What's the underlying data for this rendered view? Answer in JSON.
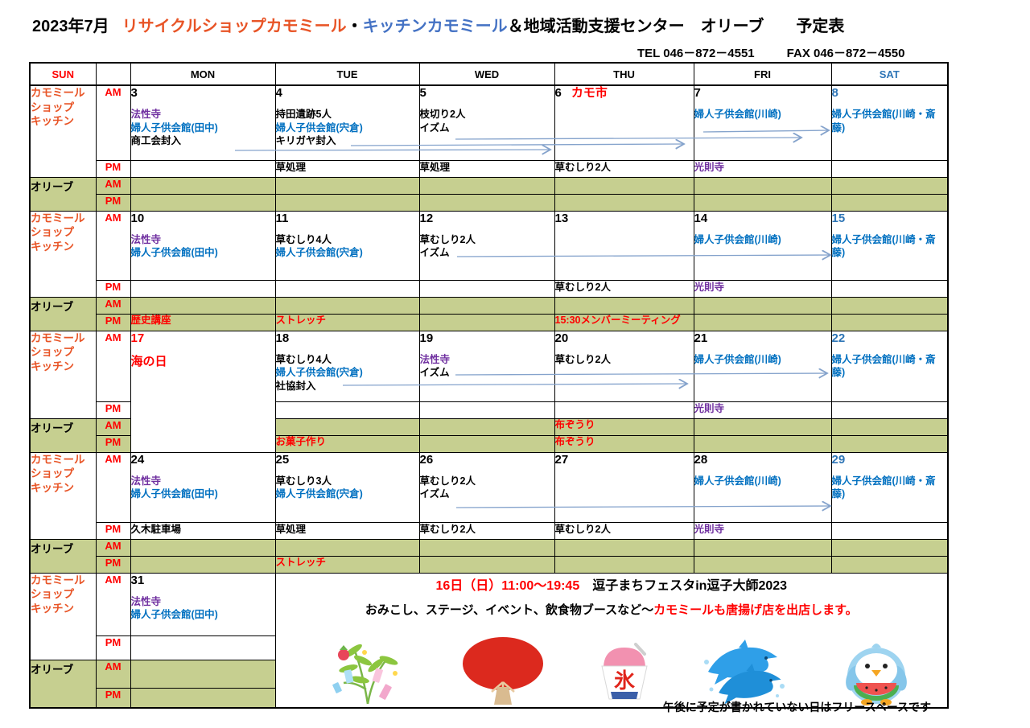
{
  "palette": {
    "red": "#ff0000",
    "orange": "#e85426",
    "event_blue": "#0070c0",
    "purple": "#7030a0",
    "sat_blue": "#2e75b6",
    "kitchen_blue": "#4472c4",
    "olive_green": "#c6cf90",
    "arrow_blue": "#85a3cc"
  },
  "header": {
    "month": "2023年7月",
    "title_shop": "リサイクルショップカモミール",
    "title_dot": "・",
    "title_kitchen": "キッチンカモミール",
    "title_rest": "＆地域活動支援センター　オリーブ　　予定表",
    "tel": "TEL 046－872－4551",
    "fax": "FAX 046－872－4550"
  },
  "table": {
    "day_headers": [
      {
        "label": "SUN"
      },
      {
        "label": ""
      },
      {
        "label": "MON"
      },
      {
        "label": "TUE"
      },
      {
        "label": "WED"
      },
      {
        "label": "THU"
      },
      {
        "label": "FRI"
      },
      {
        "label": "SAT"
      }
    ],
    "row_labels": {
      "chamomile": [
        "カモミール",
        "ショップ",
        "キッチン"
      ],
      "olive": "オリーブ",
      "am": "AM",
      "pm": "PM"
    }
  },
  "weeks": [
    {
      "mon": {
        "num": "3",
        "am": [
          [
            "法性寺",
            "purple"
          ],
          [
            "婦人子供会館(田中)",
            "blue"
          ],
          [
            "商工会封入",
            "black"
          ]
        ],
        "pm": []
      },
      "tue": {
        "num": "4",
        "am": [
          [
            "持田遺跡5人",
            "black"
          ],
          [
            "婦人子供会館(宍倉)",
            "blue"
          ],
          [
            "キリガヤ封入",
            "black"
          ]
        ],
        "pm": [
          [
            "草処理",
            "black"
          ]
        ]
      },
      "wed": {
        "num": "5",
        "am": [
          [
            "枝切り2人",
            "black"
          ],
          [
            "イズム",
            "black"
          ]
        ],
        "pm": [
          [
            "草処理",
            "black"
          ]
        ]
      },
      "thu": {
        "num": "6",
        "badge": "カモ市",
        "am": [],
        "pm": [
          [
            "草むしり2人",
            "black"
          ]
        ]
      },
      "fri": {
        "num": "7",
        "am": [
          [
            "婦人子供会館(川崎)",
            "blue"
          ]
        ],
        "pm": [
          [
            "光則寺",
            "purple"
          ]
        ]
      },
      "sat": {
        "num": "8",
        "num_color": "sat",
        "am": [
          [
            "婦人子供会館(川崎・斎藤)",
            "blue"
          ]
        ],
        "pm": []
      },
      "olive_am": {},
      "olive_pm": {},
      "diag_am": [
        "sat"
      ],
      "diag_pm": [
        "wed",
        "sat"
      ]
    },
    {
      "mon": {
        "num": "10",
        "am": [
          [
            "法性寺",
            "purple"
          ],
          [
            "婦人子供会館(田中)",
            "blue"
          ]
        ],
        "pm": []
      },
      "tue": {
        "num": "11",
        "am": [
          [
            "草むしり4人",
            "black"
          ],
          [
            "婦人子供会館(宍倉)",
            "blue"
          ]
        ],
        "pm": []
      },
      "wed": {
        "num": "12",
        "am": [
          [
            "草むしり2人",
            "black"
          ],
          [
            "イズム",
            "black"
          ]
        ],
        "pm": []
      },
      "thu": {
        "num": "13",
        "am": [],
        "pm": [
          [
            "草むしり2人",
            "black"
          ]
        ]
      },
      "fri": {
        "num": "14",
        "am": [
          [
            "婦人子供会館(川崎)",
            "blue"
          ]
        ],
        "pm": [
          [
            "光則寺",
            "purple"
          ]
        ]
      },
      "sat": {
        "num": "15",
        "num_color": "sat",
        "am": [
          [
            "婦人子供会館(川崎・斎藤)",
            "blue"
          ]
        ],
        "pm": []
      },
      "olive_am": {},
      "olive_pm": {
        "mon": [
          [
            "歴史講座",
            "red"
          ]
        ],
        "tue": [
          [
            "ストレッチ",
            "red"
          ]
        ],
        "thu": [
          [
            "15:30メンバーミーティング",
            "red"
          ]
        ]
      },
      "diag_am": [
        "sat"
      ],
      "diag_pm": [
        "wed",
        "sat"
      ]
    },
    {
      "mon": {
        "num": "17",
        "num_color": "red",
        "span_all": true,
        "am": [
          [
            "海の日",
            "red-big"
          ]
        ],
        "pm": []
      },
      "tue": {
        "num": "18",
        "am": [
          [
            "草むしり4人",
            "black"
          ],
          [
            "婦人子供会館(宍倉)",
            "blue"
          ],
          [
            "社協封入",
            "black"
          ]
        ],
        "pm": []
      },
      "wed": {
        "num": "19",
        "am": [
          [
            "法性寺",
            "purple"
          ],
          [
            "イズム",
            "black"
          ]
        ],
        "pm": []
      },
      "thu": {
        "num": "20",
        "am": [
          [
            "草むしり2人",
            "black"
          ]
        ],
        "pm": []
      },
      "fri": {
        "num": "21",
        "am": [
          [
            "婦人子供会館(川崎)",
            "blue"
          ]
        ],
        "pm": [
          [
            "光則寺",
            "purple"
          ]
        ]
      },
      "sat": {
        "num": "22",
        "num_color": "sat",
        "am": [
          [
            "婦人子供会館(川崎・斎藤)",
            "blue"
          ]
        ],
        "pm": []
      },
      "olive_am": {
        "thu": [
          [
            "布ぞうり",
            "red"
          ]
        ]
      },
      "olive_pm": {
        "tue": [
          [
            "お菓子作り",
            "red"
          ]
        ],
        "thu": [
          [
            "布ぞうり",
            "red"
          ]
        ]
      },
      "diag_am": [
        "sat"
      ],
      "diag_pm": [
        "wed",
        "sat"
      ]
    },
    {
      "mon": {
        "num": "24",
        "am": [
          [
            "法性寺",
            "purple"
          ],
          [
            "婦人子供会館(田中)",
            "blue"
          ]
        ],
        "pm": [
          [
            "久木駐車場",
            "black"
          ]
        ]
      },
      "tue": {
        "num": "25",
        "am": [
          [
            "草むしり3人",
            "black"
          ],
          [
            "婦人子供会館(宍倉)",
            "blue"
          ]
        ],
        "pm": [
          [
            "草処理",
            "black"
          ]
        ]
      },
      "wed": {
        "num": "26",
        "am": [
          [
            "草むしり2人",
            "black"
          ],
          [
            "イズム",
            "black"
          ]
        ],
        "pm": [
          [
            "草むしり2人",
            "black"
          ]
        ]
      },
      "thu": {
        "num": "27",
        "am": [],
        "pm": [
          [
            "草むしり2人",
            "black"
          ]
        ]
      },
      "fri": {
        "num": "28",
        "am": [
          [
            "婦人子供会館(川崎)",
            "blue"
          ]
        ],
        "pm": [
          [
            "光則寺",
            "purple"
          ]
        ]
      },
      "sat": {
        "num": "29",
        "num_color": "sat",
        "am": [
          [
            "婦人子供会館(川崎・斎藤)",
            "blue"
          ]
        ],
        "pm": []
      },
      "olive_am": {},
      "olive_pm": {
        "tue": [
          [
            "ストレッチ",
            "red"
          ]
        ]
      },
      "diag_am": [
        "sat"
      ],
      "diag_pm": [
        "wed",
        "sat"
      ]
    },
    {
      "announcement": true,
      "mon": {
        "num": "31",
        "am": [
          [
            "法性寺",
            "purple"
          ],
          [
            "婦人子供会館(田中)",
            "blue"
          ]
        ],
        "pm": []
      },
      "olive_am": {},
      "olive_pm": {},
      "diag_am": [],
      "diag_pm": []
    }
  ],
  "announcement": {
    "line1_red": "16日（日）11:00～19:45",
    "line1_black": "　逗子まちフェスタin逗子大師2023",
    "line2_black": "おみこし、ステージ、イベント、飲食物ブースなど～",
    "line2_red": "カモミールも唐揚げ店を出店します。",
    "ice_text": "氷"
  },
  "decorations": [
    "tanabata-icon",
    "uchiwa-fan-icon",
    "shaved-ice-icon",
    "dolphins-icon",
    "penguin-watermelon-icon"
  ],
  "footer": "午後に予定が書かれていない日はフリースペースです"
}
